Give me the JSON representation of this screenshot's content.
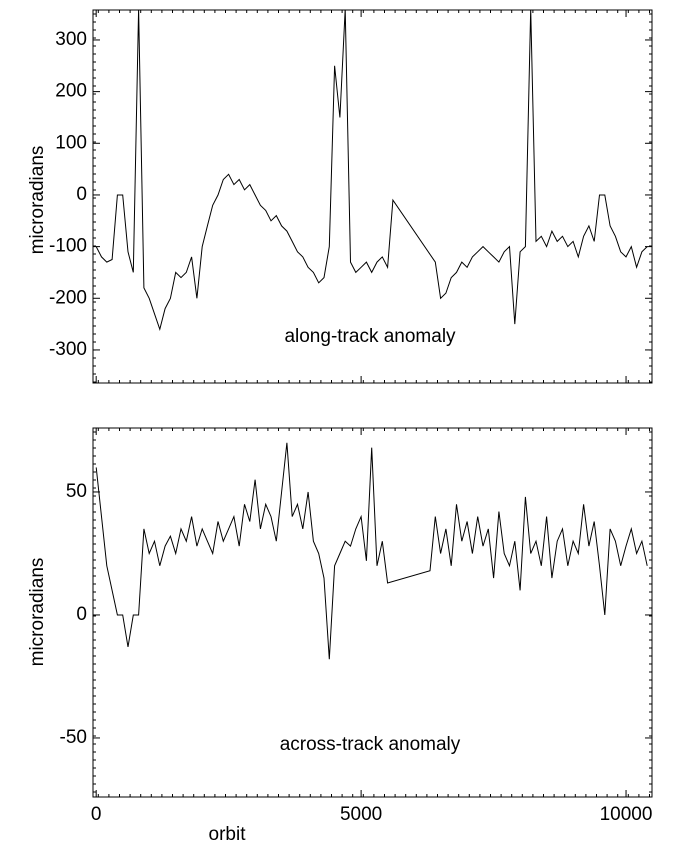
{
  "chart_data": [
    {
      "type": "line",
      "ylabel": "microradians",
      "annotation": "along-track anomaly",
      "xlim": [
        -60,
        10490
      ],
      "ylim": [
        -364,
        358
      ],
      "yticks": [
        -300,
        -200,
        -100,
        0,
        100,
        200,
        300
      ],
      "x": [
        0,
        100,
        200,
        300,
        400,
        500,
        600,
        700,
        800,
        900,
        1000,
        1100,
        1200,
        1300,
        1400,
        1500,
        1600,
        1700,
        1800,
        1900,
        2000,
        2100,
        2200,
        2300,
        2400,
        2500,
        2600,
        2700,
        2800,
        2900,
        3000,
        3100,
        3200,
        3300,
        3400,
        3500,
        3600,
        3700,
        3800,
        3900,
        4000,
        4100,
        4200,
        4300,
        4400,
        4500,
        4600,
        4700,
        4800,
        4900,
        5000,
        5100,
        5200,
        5300,
        5400,
        5500,
        5600,
        6400,
        6500,
        6600,
        6700,
        6800,
        6900,
        7000,
        7100,
        7200,
        7300,
        7400,
        7500,
        7600,
        7700,
        7800,
        7900,
        8000,
        8100,
        8200,
        8300,
        8400,
        8500,
        8600,
        8700,
        8800,
        8900,
        9000,
        9100,
        9200,
        9300,
        9400,
        9500,
        9600,
        9700,
        9800,
        9900,
        10000,
        10100,
        10200,
        10300,
        10400
      ],
      "series": [
        {
          "name": "along-track",
          "color": "#000000",
          "values": [
            -100,
            -120,
            -130,
            -125,
            0,
            0,
            -110,
            -150,
            360,
            -180,
            -200,
            -230,
            -260,
            -220,
            -200,
            -150,
            -160,
            -150,
            -120,
            -200,
            -100,
            -60,
            -20,
            0,
            30,
            40,
            20,
            30,
            10,
            20,
            0,
            -20,
            -30,
            -50,
            -40,
            -60,
            -70,
            -90,
            -110,
            -120,
            -140,
            -150,
            -170,
            -160,
            -100,
            250,
            150,
            360,
            -130,
            -150,
            -140,
            -130,
            -150,
            -130,
            -120,
            -140,
            -10,
            -130,
            -200,
            -190,
            -160,
            -150,
            -130,
            -140,
            -120,
            -110,
            -100,
            -110,
            -120,
            -130,
            -110,
            -100,
            -250,
            -110,
            -100,
            360,
            -90,
            -80,
            -100,
            -70,
            -90,
            -80,
            -100,
            -90,
            -120,
            -80,
            -60,
            -90,
            0,
            0,
            -60,
            -80,
            -110,
            -120,
            -100,
            -140,
            -110,
            -100
          ]
        }
      ]
    },
    {
      "type": "line",
      "ylabel": "microradians",
      "annotation": "across-track anomaly",
      "xlabel": "orbit",
      "xlim": [
        -60,
        10490
      ],
      "ylim": [
        -74,
        76
      ],
      "yticks": [
        -50,
        0,
        50
      ],
      "xticks": [
        0,
        5000,
        10000
      ],
      "x": [
        0,
        100,
        200,
        300,
        400,
        500,
        600,
        700,
        800,
        900,
        1000,
        1100,
        1200,
        1300,
        1400,
        1500,
        1600,
        1700,
        1800,
        1900,
        2000,
        2100,
        2200,
        2300,
        2400,
        2500,
        2600,
        2700,
        2800,
        2900,
        3000,
        3100,
        3200,
        3300,
        3400,
        3500,
        3600,
        3700,
        3800,
        3900,
        4000,
        4100,
        4200,
        4300,
        4400,
        4500,
        4600,
        4700,
        4800,
        4900,
        5000,
        5100,
        5200,
        5300,
        5400,
        5500,
        6300,
        6400,
        6500,
        6600,
        6700,
        6800,
        6900,
        7000,
        7100,
        7200,
        7300,
        7400,
        7500,
        7600,
        7700,
        7800,
        7900,
        8000,
        8100,
        8200,
        8300,
        8400,
        8500,
        8600,
        8700,
        8800,
        8900,
        9000,
        9100,
        9200,
        9300,
        9400,
        9500,
        9600,
        9700,
        9800,
        9900,
        10000,
        10100,
        10200,
        10300,
        10400
      ],
      "series": [
        {
          "name": "across-track",
          "color": "#000000",
          "values": [
            60,
            40,
            20,
            10,
            0,
            0,
            -13,
            0,
            0,
            35,
            25,
            30,
            20,
            28,
            32,
            25,
            35,
            30,
            40,
            28,
            35,
            30,
            25,
            38,
            30,
            35,
            40,
            28,
            45,
            38,
            55,
            35,
            45,
            40,
            30,
            50,
            70,
            40,
            45,
            35,
            50,
            30,
            25,
            15,
            -18,
            20,
            25,
            30,
            28,
            35,
            40,
            22,
            68,
            20,
            30,
            13,
            18,
            40,
            25,
            35,
            20,
            45,
            30,
            38,
            25,
            40,
            28,
            35,
            15,
            42,
            25,
            20,
            30,
            10,
            48,
            25,
            30,
            20,
            40,
            15,
            30,
            35,
            20,
            30,
            25,
            45,
            28,
            38,
            20,
            0,
            35,
            30,
            20,
            28,
            35,
            25,
            30,
            20
          ]
        }
      ]
    }
  ]
}
